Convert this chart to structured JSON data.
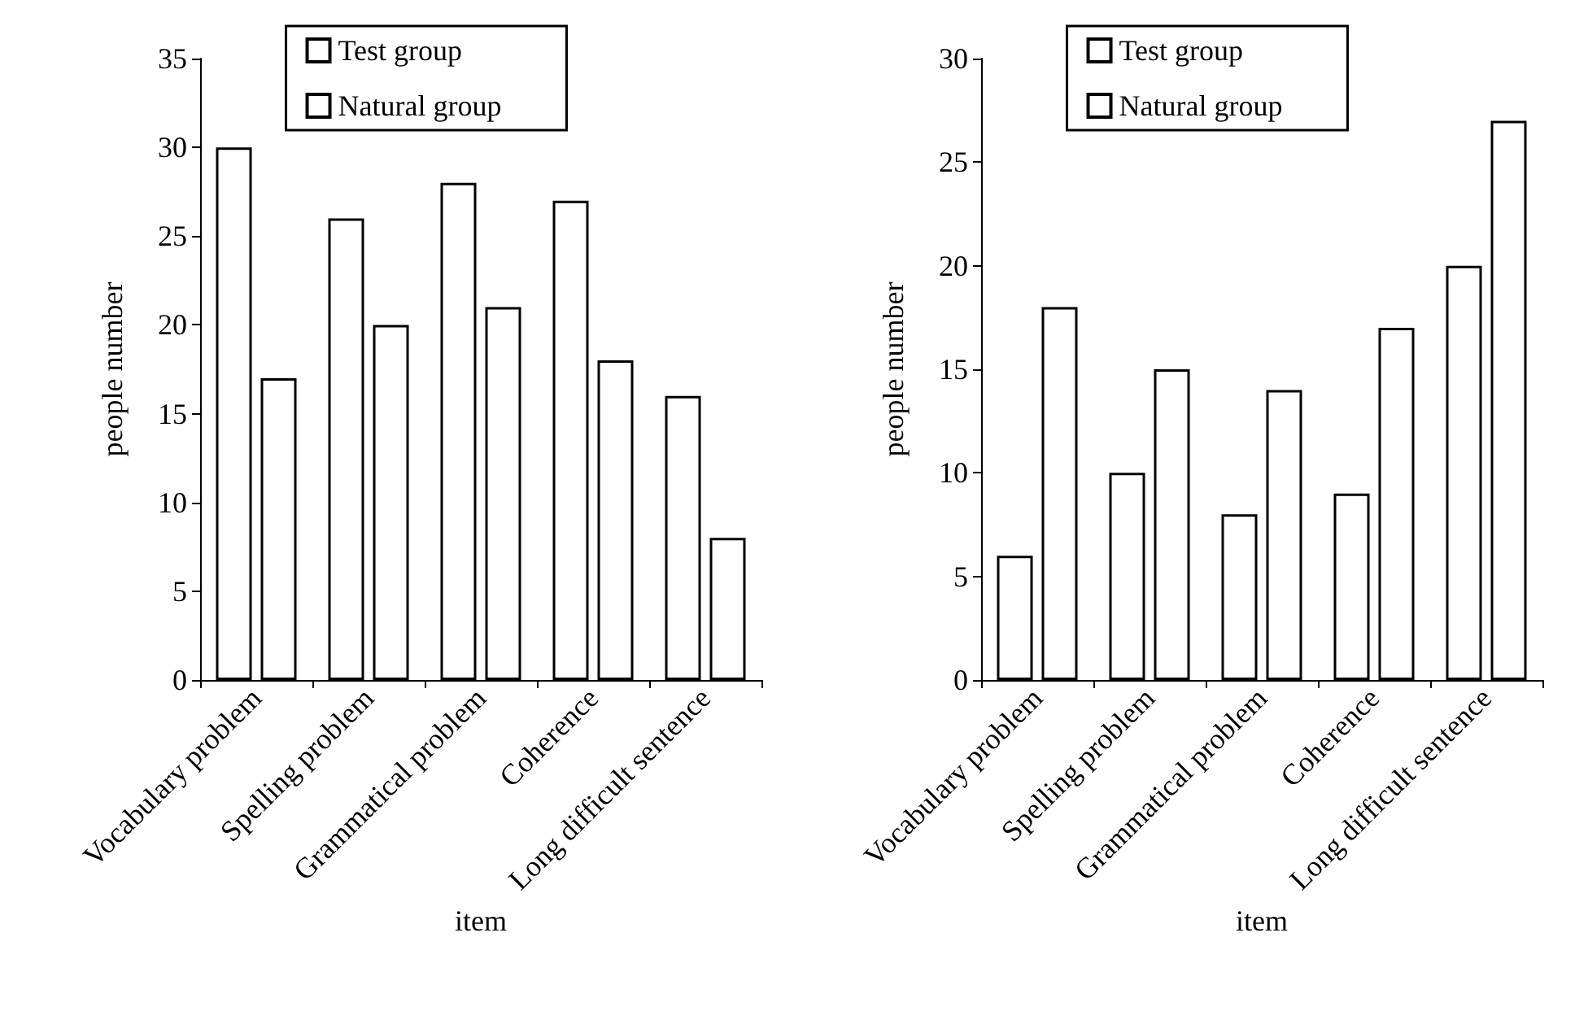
{
  "chart_data": [
    {
      "type": "bar",
      "categories": [
        "Vocabulary problem",
        "Spelling problem",
        "Grammatical problem",
        "Coherence",
        "Long difficult sentence"
      ],
      "xlabel": "item",
      "ylabel": "people number",
      "ylim": [
        0,
        35
      ],
      "yticks": [
        0,
        5,
        10,
        15,
        20,
        25,
        30,
        35
      ],
      "grid": false,
      "legend": "top",
      "series": [
        {
          "name": "Test group",
          "color": "#ffffff",
          "values": [
            30,
            26,
            28,
            27,
            16
          ]
        },
        {
          "name": "Natural group",
          "color": "#ffffff",
          "values": [
            17,
            20,
            21,
            18,
            8
          ]
        }
      ]
    },
    {
      "type": "bar",
      "categories": [
        "Vocabulary problem",
        "Spelling problem",
        "Grammatical problem",
        "Coherence",
        "Long difficult sentence"
      ],
      "xlabel": "item",
      "ylabel": "people number",
      "ylim": [
        0,
        30
      ],
      "yticks": [
        0,
        5,
        10,
        15,
        20,
        25,
        30
      ],
      "grid": false,
      "legend": "top",
      "series": [
        {
          "name": "Test group",
          "color": "#ffffff",
          "values": [
            6,
            10,
            8,
            9,
            20
          ]
        },
        {
          "name": "Natural group",
          "color": "#ffffff",
          "values": [
            18,
            15,
            14,
            17,
            27
          ]
        }
      ]
    }
  ]
}
